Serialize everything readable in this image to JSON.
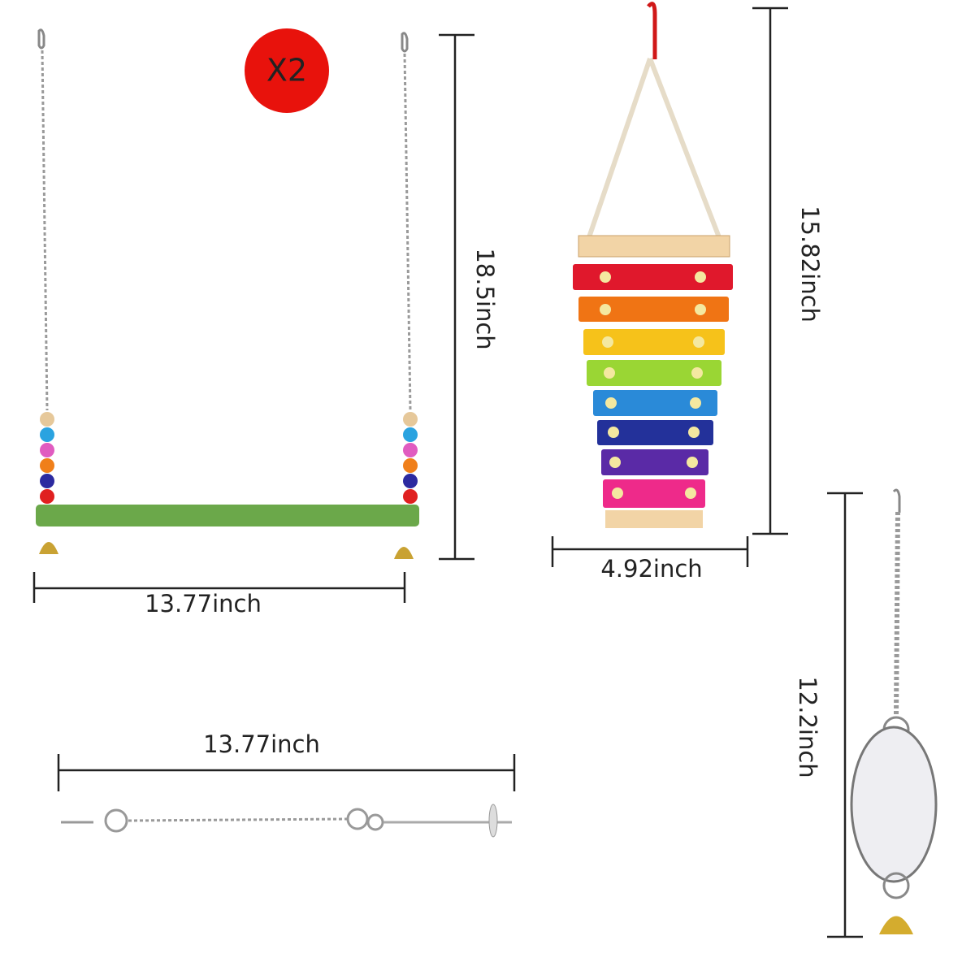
{
  "badge": "X2",
  "swing": {
    "height": "18.5inch",
    "width": "13.77inch"
  },
  "xylophone": {
    "height": "15.82inch",
    "width": "4.92inch"
  },
  "chain": {
    "length": "13.77inch"
  },
  "mirror": {
    "height": "12.2inch"
  }
}
